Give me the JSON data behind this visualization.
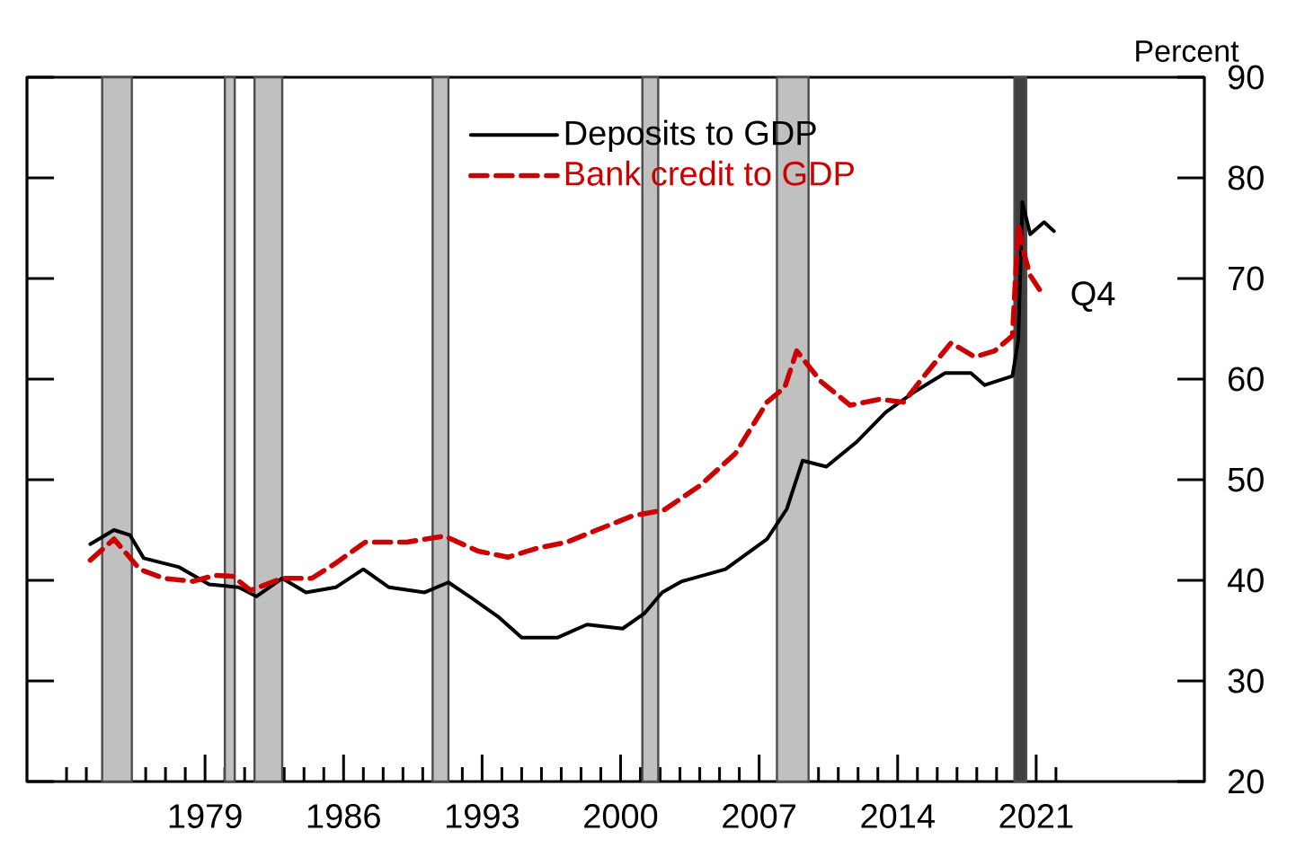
{
  "chart_data": {
    "type": "line",
    "ylabel": "Percent",
    "ylim": [
      20,
      90
    ],
    "yticks": [
      20,
      30,
      40,
      50,
      60,
      70,
      80,
      90
    ],
    "xlim": [
      1970,
      2029.5
    ],
    "xticks": [
      {
        "value": 1972,
        "label": null
      },
      {
        "value": 1973,
        "label": null
      },
      {
        "value": 1974,
        "label": null
      },
      {
        "value": 1975,
        "label": null
      },
      {
        "value": 1976,
        "label": null
      },
      {
        "value": 1977,
        "label": null
      },
      {
        "value": 1978,
        "label": null
      },
      {
        "value": 1979,
        "label": "1979"
      },
      {
        "value": 1980,
        "label": null
      },
      {
        "value": 1981,
        "label": null
      },
      {
        "value": 1982,
        "label": null
      },
      {
        "value": 1983,
        "label": null
      },
      {
        "value": 1984,
        "label": null
      },
      {
        "value": 1985,
        "label": null
      },
      {
        "value": 1986,
        "label": "1986"
      },
      {
        "value": 1987,
        "label": null
      },
      {
        "value": 1988,
        "label": null
      },
      {
        "value": 1989,
        "label": null
      },
      {
        "value": 1990,
        "label": null
      },
      {
        "value": 1991,
        "label": null
      },
      {
        "value": 1992,
        "label": null
      },
      {
        "value": 1993,
        "label": "1993"
      },
      {
        "value": 1994,
        "label": null
      },
      {
        "value": 1995,
        "label": null
      },
      {
        "value": 1996,
        "label": null
      },
      {
        "value": 1997,
        "label": null
      },
      {
        "value": 1998,
        "label": null
      },
      {
        "value": 1999,
        "label": null
      },
      {
        "value": 2000,
        "label": "2000"
      },
      {
        "value": 2001,
        "label": null
      },
      {
        "value": 2002,
        "label": null
      },
      {
        "value": 2003,
        "label": null
      },
      {
        "value": 2004,
        "label": null
      },
      {
        "value": 2005,
        "label": null
      },
      {
        "value": 2006,
        "label": null
      },
      {
        "value": 2007,
        "label": "2007"
      },
      {
        "value": 2008,
        "label": null
      },
      {
        "value": 2009,
        "label": null
      },
      {
        "value": 2010,
        "label": null
      },
      {
        "value": 2011,
        "label": null
      },
      {
        "value": 2012,
        "label": null
      },
      {
        "value": 2013,
        "label": null
      },
      {
        "value": 2014,
        "label": "2014"
      },
      {
        "value": 2015,
        "label": null
      },
      {
        "value": 2016,
        "label": null
      },
      {
        "value": 2017,
        "label": null
      },
      {
        "value": 2018,
        "label": null
      },
      {
        "value": 2019,
        "label": null
      },
      {
        "value": 2020,
        "label": null
      },
      {
        "value": 2021,
        "label": "2021"
      },
      {
        "value": 2022,
        "label": null
      }
    ],
    "legend": "top",
    "grid": false,
    "marker": "none",
    "bands": [
      {
        "axis": "x",
        "from": 1973.8,
        "to": 1975.3,
        "color": "#c0c0c0"
      },
      {
        "axis": "x",
        "from": 1980.0,
        "to": 1980.5,
        "color": "#c0c0c0"
      },
      {
        "axis": "x",
        "from": 1981.5,
        "to": 1982.9,
        "color": "#c0c0c0"
      },
      {
        "axis": "x",
        "from": 1990.5,
        "to": 1991.3,
        "color": "#c0c0c0"
      },
      {
        "axis": "x",
        "from": 2001.1,
        "to": 2001.9,
        "color": "#c0c0c0"
      },
      {
        "axis": "x",
        "from": 2007.9,
        "to": 2009.5,
        "color": "#c0c0c0"
      },
      {
        "axis": "x",
        "from": 2019.9,
        "to": 2020.5,
        "color": "#404040"
      }
    ],
    "annotations": [
      {
        "text": "Q4",
        "x": 2021.4,
        "y": 68.2
      }
    ],
    "series": [
      {
        "name": "Deposits to GDP",
        "color": "#000000",
        "line_style": "solid",
        "x": [
          1973.2,
          1974.4,
          1975.2,
          1975.9,
          1977.7,
          1979.2,
          1980.7,
          1981.6,
          1982.9,
          1984.1,
          1985.6,
          1987.0,
          1988.3,
          1990.1,
          1991.3,
          1992.5,
          1993.8,
          1995.0,
          1996.8,
          1998.3,
          2000.1,
          2001.2,
          2002.1,
          2003.1,
          2005.3,
          2007.4,
          2008.4,
          2009.2,
          2010.4,
          2011.9,
          2013.4,
          2014.9,
          2016.4,
          2017.7,
          2018.4,
          2019.8,
          2020.1,
          2020.3,
          2020.7,
          2021.4,
          2021.9
        ],
        "values": [
          43.6,
          45.0,
          44.5,
          42.2,
          41.3,
          39.6,
          39.3,
          38.4,
          40.2,
          38.8,
          39.3,
          41.1,
          39.3,
          38.8,
          39.8,
          38.2,
          36.4,
          34.3,
          34.3,
          35.6,
          35.2,
          36.7,
          38.8,
          39.9,
          41.1,
          44.1,
          47.1,
          51.9,
          51.3,
          53.7,
          56.7,
          58.8,
          60.6,
          60.6,
          59.4,
          60.3,
          63.9,
          77.6,
          74.4,
          75.6,
          74.7
        ]
      },
      {
        "name": "Bank credit to GDP",
        "color": "#cc0000",
        "line_style": "dashed",
        "x": [
          1973.2,
          1974.4,
          1975.7,
          1976.9,
          1978.4,
          1979.5,
          1980.4,
          1981.3,
          1982.9,
          1984.4,
          1985.6,
          1987.1,
          1989.2,
          1991.1,
          1992.8,
          1994.3,
          1995.8,
          1997.3,
          1998.8,
          2000.6,
          2002.2,
          2004.0,
          2005.8,
          2007.4,
          2008.3,
          2008.9,
          2010.1,
          2011.6,
          2013.1,
          2014.3,
          2015.5,
          2016.7,
          2017.9,
          2018.9,
          2019.8,
          2020.1,
          2020.4,
          2020.7,
          2021.4
        ],
        "values": [
          42.0,
          44.1,
          41.1,
          40.2,
          39.9,
          40.5,
          40.4,
          39.0,
          40.2,
          40.2,
          41.7,
          43.8,
          43.8,
          44.4,
          42.9,
          42.3,
          43.2,
          43.8,
          45.0,
          46.4,
          47.0,
          49.4,
          52.6,
          57.7,
          59.2,
          62.8,
          59.8,
          57.4,
          58.0,
          57.7,
          60.7,
          63.6,
          62.2,
          62.8,
          64.3,
          75.3,
          72.4,
          70.3,
          68.2
        ]
      }
    ]
  }
}
